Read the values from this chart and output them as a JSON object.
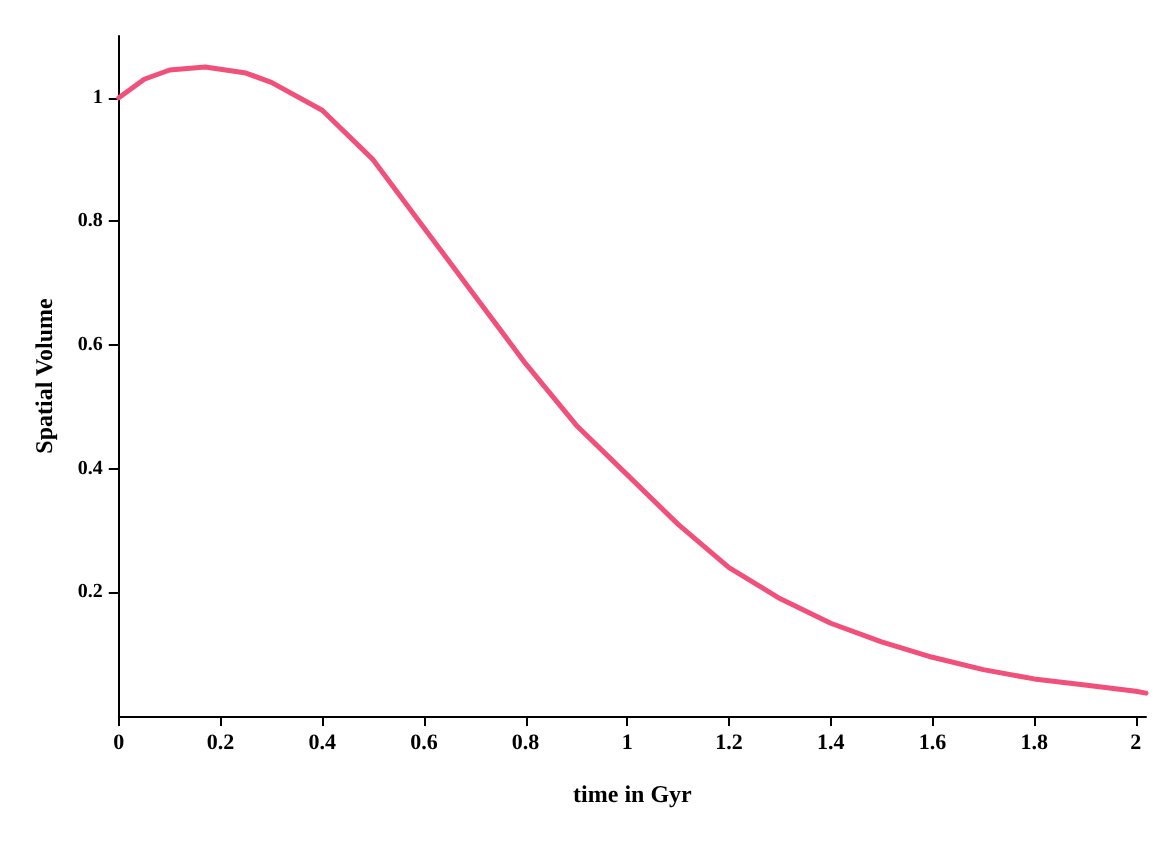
{
  "chart_data": {
    "type": "line",
    "xlabel": "time in Gyr",
    "ylabel": "Spatial Volume",
    "x": [
      0,
      0.05,
      0.1,
      0.17,
      0.25,
      0.3,
      0.4,
      0.5,
      0.6,
      0.7,
      0.8,
      0.9,
      1,
      1.1,
      1.2,
      1.3,
      1.4,
      1.5,
      1.6,
      1.7,
      1.8,
      1.9,
      2,
      2.02
    ],
    "series": [
      {
        "color": "#f0507a",
        "values": [
          1,
          1.03,
          1.045,
          1.05,
          1.04,
          1.025,
          0.98,
          0.9,
          0.79,
          0.68,
          0.57,
          0.47,
          0.39,
          0.31,
          0.24,
          0.19,
          0.15,
          0.12,
          0.095,
          0.075,
          0.06,
          0.05,
          0.04,
          0.037
        ]
      }
    ],
    "xlim": [
      0,
      2.02
    ],
    "ylim": [
      0,
      1.1
    ],
    "xticks": [
      0,
      0.2,
      0.4,
      0.6,
      0.8,
      1,
      1.2,
      1.4,
      1.6,
      1.8,
      2
    ],
    "yticks": [
      0.2,
      0.4,
      0.6,
      0.8,
      1
    ],
    "grid": false,
    "marker": "none",
    "line_style": "solid"
  }
}
